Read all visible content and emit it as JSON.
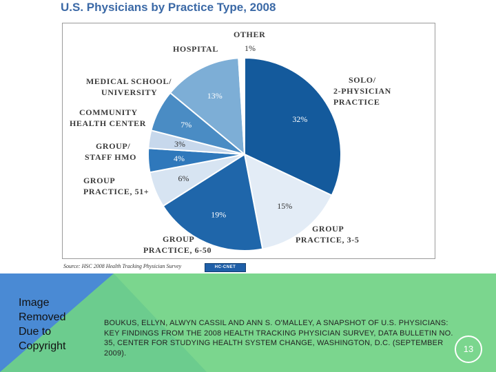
{
  "chart_data": {
    "type": "pie",
    "title": "U.S. Physicians by Practice Type, 2008",
    "categories": [
      "Solo/ 2-Physician Practice",
      "Group Practice, 3-5",
      "Group Practice, 6-50",
      "Group Practice, 51+",
      "Group/ Staff HMO",
      "Community Health Center",
      "Medical School/ University",
      "Hospital",
      "Other"
    ],
    "values": [
      32,
      15,
      19,
      6,
      4,
      3,
      7,
      13,
      1
    ],
    "value_labels": [
      "32%",
      "15%",
      "19%",
      "6%",
      "4%",
      "3%",
      "7%",
      "13%",
      "1%"
    ],
    "colors": [
      "#145a9c",
      "#e3ecf6",
      "#1f66aa",
      "#d7e4f2",
      "#2f78bb",
      "#c7d8ec",
      "#4a8cc4",
      "#7daed6",
      "#ffffff"
    ],
    "label_colors": [
      "#ffffff",
      "#333333",
      "#ffffff",
      "#333333",
      "#ffffff",
      "#333333",
      "#ffffff",
      "#ffffff",
      "#333333"
    ],
    "start": "12 o'clock",
    "direction": "clockwise",
    "source": "Source: HSC 2008 Health Tracking Physician Survey"
  },
  "labels": {
    "other": "Other",
    "hospital": "Hospital",
    "med_school_1": "Medical School/",
    "med_school_2": "University",
    "chc_1": "Community",
    "chc_2": "Health Center",
    "hmo_1": "Group/",
    "hmo_2": "Staff HMO",
    "g51_1": "Group",
    "g51_2": "Practice, 51+",
    "g650_1": "Group",
    "g650_2": "Practice, 6-50",
    "g35_1": "Group",
    "g35_2": "Practice, 3-5",
    "solo_1": "Solo/",
    "solo_2": "2-Physician",
    "solo_3": "Practice"
  },
  "badge": "HC-CNET",
  "image_removed": [
    "Image",
    "Removed",
    "Due to",
    "Copyright"
  ],
  "citation": "BOUKUS, ELLYN, ALWYN CASSIL AND ANN S. O'MALLEY, A SNAPSHOT OF U.S. PHYSICIANS: KEY FINDINGS FROM THE 2008 HEALTH TRACKING PHYSICIAN SURVEY, DATA BULLETIN NO. 35, CENTER FOR STUDYING HEALTH SYSTEM CHANGE, WASHINGTON, D.C. (SEPTEMBER 2009).",
  "page_number": "13",
  "colors": {
    "title": "#3b69a6",
    "footer_green": "#7bd68e",
    "footer_blue": "#4a8ad4"
  }
}
